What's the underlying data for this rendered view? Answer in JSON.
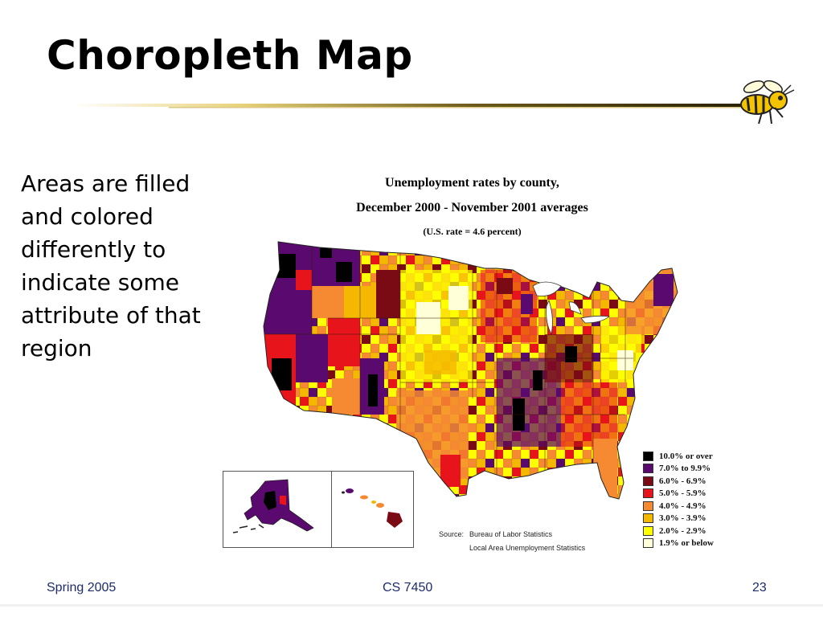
{
  "slide": {
    "title": "Choropleth Map",
    "body": "Areas are filled and colored differently to indicate some attribute of that region"
  },
  "map": {
    "title_line1": "Unemployment rates by county,",
    "title_line2": "December 2000 - November 2001 averages",
    "title_line3": "(U.S. rate = 4.6 percent)",
    "source_label": "Source:",
    "source_line1": "Bureau of Labor Statistics",
    "source_line2": "Local Area Unemployment Statistics",
    "legend": [
      {
        "label": "10.0% or over",
        "color": "#000000"
      },
      {
        "label": "7.0% to 9.9%",
        "color": "#5a0a6e"
      },
      {
        "label": "6.0% - 6.9%",
        "color": "#7a0a14"
      },
      {
        "label": "5.0% - 5.9%",
        "color": "#e8141c"
      },
      {
        "label": "4.0% - 4.9%",
        "color": "#f58a32"
      },
      {
        "label": "3.0% - 3.9%",
        "color": "#f5b800"
      },
      {
        "label": "2.0% - 2.9%",
        "color": "#ffff00"
      },
      {
        "label": "1.9% or below",
        "color": "#ffffd8"
      }
    ]
  },
  "footer": {
    "left": "Spring 2005",
    "center": "CS 7450",
    "right": "23"
  }
}
